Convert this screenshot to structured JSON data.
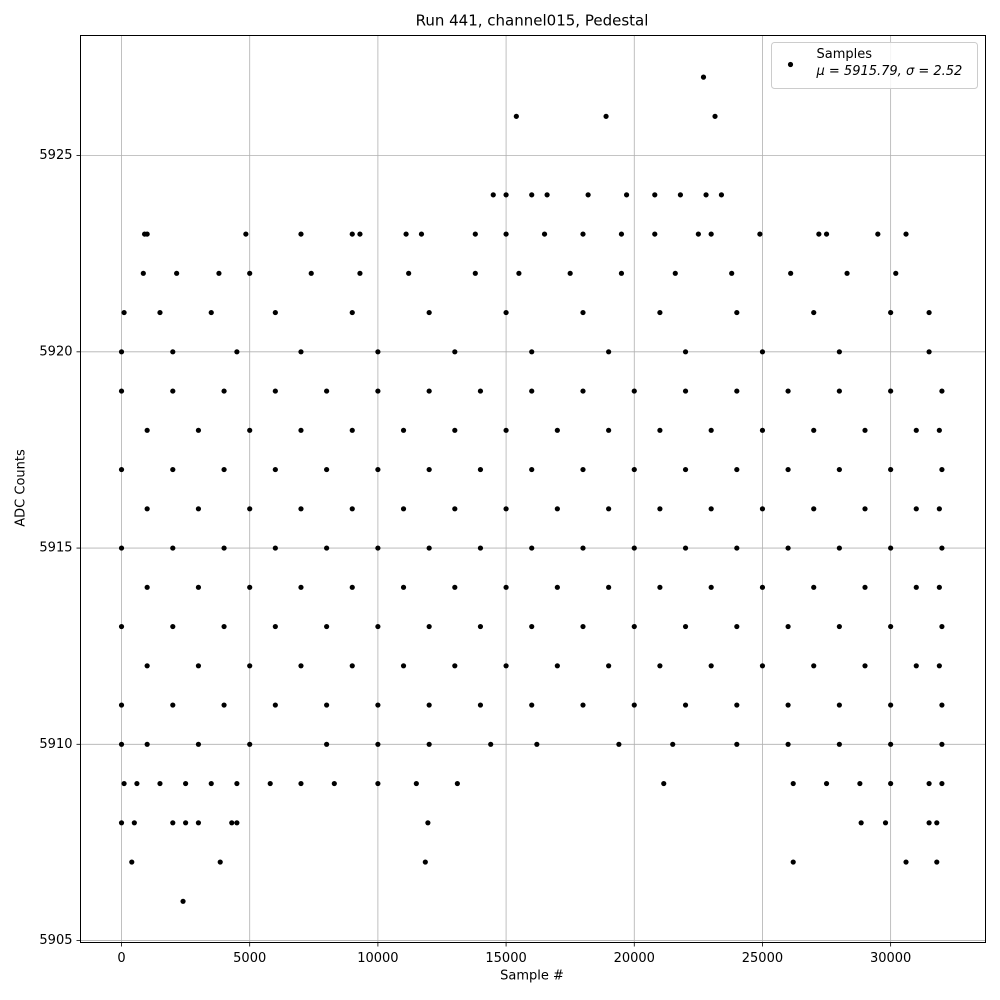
{
  "chart_data": {
    "type": "scatter",
    "title": "Run 441, channel015, Pedestal",
    "x_label": "Sample #",
    "y_label": "ADC Counts",
    "xlim": [
      -1600,
      33700
    ],
    "ylim": [
      5904.95,
      5928.06
    ],
    "xticks": [
      0,
      5000,
      10000,
      15000,
      20000,
      25000,
      30000
    ],
    "yticks": [
      5905,
      5910,
      5915,
      5920,
      5925
    ],
    "grid": true,
    "legend": "upper right",
    "legend_note": "μ = 5915.79, σ = 2.52",
    "series": [
      {
        "name": "Samples",
        "color": "#000000",
        "x": [
          0,
          2000,
          4000,
          6000,
          8000,
          10000,
          12000,
          14000,
          16000,
          18000,
          20000,
          22000,
          24000,
          26000,
          28000,
          30000,
          32000,
          1000,
          3000,
          5000,
          7000,
          9000,
          11000,
          13000,
          15000,
          17000,
          19000,
          21000,
          23000,
          25000,
          27000,
          29000,
          31000,
          31900,
          0,
          2000,
          4000,
          6000,
          8000,
          10000,
          12000,
          14000,
          16000,
          18000,
          20000,
          22000,
          24000,
          26000,
          28000,
          30000,
          32000,
          1000,
          3000,
          5000,
          7000,
          9000,
          11000,
          13000,
          15000,
          17000,
          19000,
          21000,
          23000,
          25000,
          27000,
          29000,
          31000,
          31900,
          0,
          2000,
          4000,
          6000,
          8000,
          10000,
          12000,
          14000,
          16000,
          18000,
          20000,
          22000,
          24000,
          26000,
          28000,
          30000,
          32000,
          1000,
          3000,
          5000,
          7000,
          9000,
          11000,
          13000,
          15000,
          17000,
          19000,
          21000,
          23000,
          25000,
          27000,
          29000,
          31000,
          31900,
          0,
          2000,
          4000,
          6000,
          8000,
          10000,
          12000,
          14000,
          16000,
          18000,
          20000,
          22000,
          24000,
          26000,
          28000,
          30000,
          32000,
          1000,
          3000,
          5000,
          7000,
          9000,
          11000,
          13000,
          15000,
          17000,
          19000,
          21000,
          23000,
          25000,
          27000,
          29000,
          31000,
          31900,
          0,
          2000,
          4000,
          6000,
          8000,
          10000,
          12000,
          14000,
          16000,
          18000,
          20000,
          22000,
          24000,
          26000,
          28000,
          30000,
          32000,
          0,
          1000,
          3000,
          5000,
          8000,
          10000,
          12000,
          14400,
          16200,
          19400,
          21500,
          24000,
          26000,
          28000,
          30000,
          32000,
          0,
          2000,
          4500,
          7000,
          10000,
          13000,
          16000,
          19000,
          22000,
          25000,
          28000,
          31500,
          100,
          1500,
          3500,
          6000,
          9000,
          12000,
          15000,
          18000,
          21000,
          24000,
          27000,
          30000,
          31500,
          850,
          2150,
          3800,
          5000,
          7400,
          9300,
          11200,
          13800,
          15500,
          17500,
          19500,
          21600,
          23800,
          26100,
          28300,
          30200,
          900,
          1000,
          4850,
          7000,
          9000,
          9300,
          11100,
          11700,
          13800,
          15000,
          16500,
          18000,
          19500,
          20800,
          22500,
          23000,
          24900,
          27200,
          27500,
          29500,
          30600,
          14500,
          15000,
          16000,
          16600,
          18200,
          19700,
          20800,
          21800,
          22800,
          23400,
          15400,
          18900,
          23150,
          22700,
          100,
          600,
          1500,
          2500,
          3500,
          4500,
          5800,
          7000,
          8300,
          10000,
          11500,
          13100,
          21150,
          26200,
          27500,
          28800,
          30000,
          31500,
          32000,
          0,
          500,
          2000,
          2500,
          3000,
          4300,
          4500,
          11950,
          28850,
          29800,
          31500,
          31800,
          400,
          3850,
          11850,
          26200,
          30600,
          31800,
          2400
        ],
        "values": [
          5919,
          5919,
          5919,
          5919,
          5919,
          5919,
          5919,
          5919,
          5919,
          5919,
          5919,
          5919,
          5919,
          5919,
          5919,
          5919,
          5919,
          5918,
          5918,
          5918,
          5918,
          5918,
          5918,
          5918,
          5918,
          5918,
          5918,
          5918,
          5918,
          5918,
          5918,
          5918,
          5918,
          5918,
          5917,
          5917,
          5917,
          5917,
          5917,
          5917,
          5917,
          5917,
          5917,
          5917,
          5917,
          5917,
          5917,
          5917,
          5917,
          5917,
          5917,
          5916,
          5916,
          5916,
          5916,
          5916,
          5916,
          5916,
          5916,
          5916,
          5916,
          5916,
          5916,
          5916,
          5916,
          5916,
          5916,
          5916,
          5915,
          5915,
          5915,
          5915,
          5915,
          5915,
          5915,
          5915,
          5915,
          5915,
          5915,
          5915,
          5915,
          5915,
          5915,
          5915,
          5915,
          5914,
          5914,
          5914,
          5914,
          5914,
          5914,
          5914,
          5914,
          5914,
          5914,
          5914,
          5914,
          5914,
          5914,
          5914,
          5914,
          5914,
          5913,
          5913,
          5913,
          5913,
          5913,
          5913,
          5913,
          5913,
          5913,
          5913,
          5913,
          5913,
          5913,
          5913,
          5913,
          5913,
          5913,
          5912,
          5912,
          5912,
          5912,
          5912,
          5912,
          5912,
          5912,
          5912,
          5912,
          5912,
          5912,
          5912,
          5912,
          5912,
          5912,
          5912,
          5911,
          5911,
          5911,
          5911,
          5911,
          5911,
          5911,
          5911,
          5911,
          5911,
          5911,
          5911,
          5911,
          5911,
          5911,
          5911,
          5911,
          5910,
          5910,
          5910,
          5910,
          5910,
          5910,
          5910,
          5910,
          5910,
          5910,
          5910,
          5910,
          5910,
          5910,
          5910,
          5910,
          5920,
          5920,
          5920,
          5920,
          5920,
          5920,
          5920,
          5920,
          5920,
          5920,
          5920,
          5920,
          5921,
          5921,
          5921,
          5921,
          5921,
          5921,
          5921,
          5921,
          5921,
          5921,
          5921,
          5921,
          5921,
          5922,
          5922,
          5922,
          5922,
          5922,
          5922,
          5922,
          5922,
          5922,
          5922,
          5922,
          5922,
          5922,
          5922,
          5922,
          5922,
          5923,
          5923,
          5923,
          5923,
          5923,
          5923,
          5923,
          5923,
          5923,
          5923,
          5923,
          5923,
          5923,
          5923,
          5923,
          5923,
          5923,
          5923,
          5923,
          5923,
          5923,
          5924,
          5924,
          5924,
          5924,
          5924,
          5924,
          5924,
          5924,
          5924,
          5924,
          5926,
          5926,
          5926,
          5927,
          5909,
          5909,
          5909,
          5909,
          5909,
          5909,
          5909,
          5909,
          5909,
          5909,
          5909,
          5909,
          5909,
          5909,
          5909,
          5909,
          5909,
          5909,
          5909,
          5908,
          5908,
          5908,
          5908,
          5908,
          5908,
          5908,
          5908,
          5908,
          5908,
          5908,
          5908,
          5907,
          5907,
          5907,
          5907,
          5907,
          5907,
          5906
        ]
      }
    ]
  }
}
